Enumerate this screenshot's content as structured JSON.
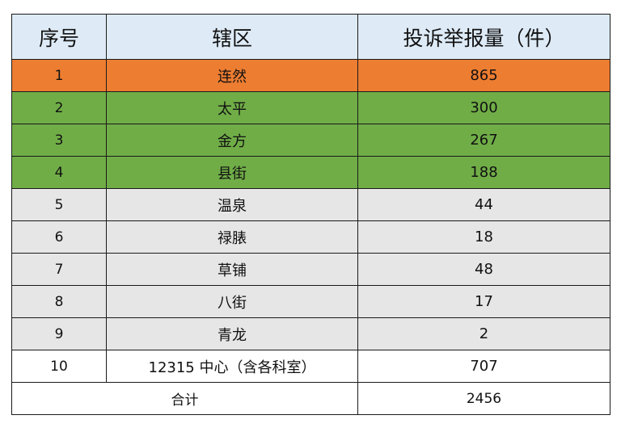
{
  "table": {
    "headers": [
      "序号",
      "辖区",
      "投诉举报量（件）"
    ],
    "rows": [
      {
        "no": "1",
        "district": "连然",
        "count": "865",
        "bg": "#ed7d31"
      },
      {
        "no": "2",
        "district": "太平",
        "count": "300",
        "bg": "#70ad47"
      },
      {
        "no": "3",
        "district": "金方",
        "count": "267",
        "bg": "#70ad47"
      },
      {
        "no": "4",
        "district": "县街",
        "count": "188",
        "bg": "#70ad47"
      },
      {
        "no": "5",
        "district": "温泉",
        "count": "44",
        "bg": "#e7e6e6"
      },
      {
        "no": "6",
        "district": "禄脿",
        "count": "18",
        "bg": "#e7e6e6"
      },
      {
        "no": "7",
        "district": "草铺",
        "count": "48",
        "bg": "#e7e6e6"
      },
      {
        "no": "8",
        "district": "八街",
        "count": "17",
        "bg": "#e7e6e6"
      },
      {
        "no": "9",
        "district": "青龙",
        "count": "2",
        "bg": "#e7e6e6"
      },
      {
        "no": "10",
        "district": "12315 中心（含各科室）",
        "count": "707",
        "bg": "#ffffff"
      }
    ],
    "total": {
      "label": "合计",
      "count": "2456"
    }
  }
}
